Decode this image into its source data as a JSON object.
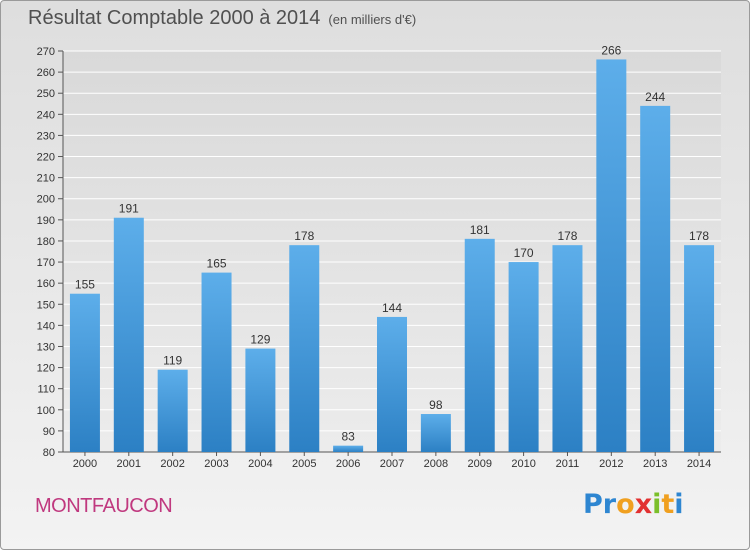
{
  "chart_data": {
    "type": "bar",
    "title": "Résultat Comptable 2000 à 2014",
    "subtitle": "(en milliers d'€)",
    "categories": [
      "2000",
      "2001",
      "2002",
      "2003",
      "2004",
      "2005",
      "2006",
      "2007",
      "2008",
      "2009",
      "2010",
      "2011",
      "2012",
      "2013",
      "2014"
    ],
    "values": [
      155,
      191,
      119,
      165,
      129,
      178,
      83,
      144,
      98,
      181,
      170,
      178,
      266,
      244,
      178
    ],
    "ylim": [
      80,
      270
    ],
    "ytick_step": 10,
    "grid": true,
    "data_labels": true,
    "bar_color": "#4a9fe0"
  },
  "place_name": "MONTFAUCON",
  "logo": {
    "letters": [
      "P",
      "r",
      "o",
      "x",
      "i",
      "t",
      "i"
    ],
    "colors": [
      "#2e86d1",
      "#2e86d1",
      "#f0a020",
      "#e23030",
      "#7bbf2a",
      "#f0a020",
      "#2e86d1"
    ]
  }
}
